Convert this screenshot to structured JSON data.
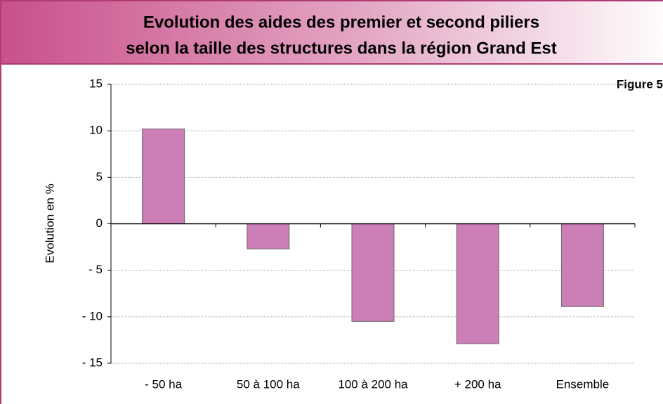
{
  "chart_data": {
    "type": "bar",
    "title": [
      "Evolution des aides des premier et second piliers",
      "selon la taille des structures dans la région Grand Est"
    ],
    "annotation": "Figure 5",
    "y_label": "Evolution en %",
    "categories": [
      "- 50 ha",
      "50 à 100 ha",
      "100 à 200 ha",
      "+ 200 ha",
      "Ensemble"
    ],
    "values": [
      10.2,
      -2.7,
      -10.5,
      -12.9,
      -8.9
    ],
    "color": "#cc7fb6",
    "ylim": [
      -15,
      15
    ],
    "yticks": [
      15,
      10,
      5,
      0,
      {
        "value": -5,
        "label": "- 5"
      },
      {
        "value": -10,
        "label": "- 10"
      },
      {
        "value": -15,
        "label": "- 15"
      }
    ],
    "grid": true
  }
}
